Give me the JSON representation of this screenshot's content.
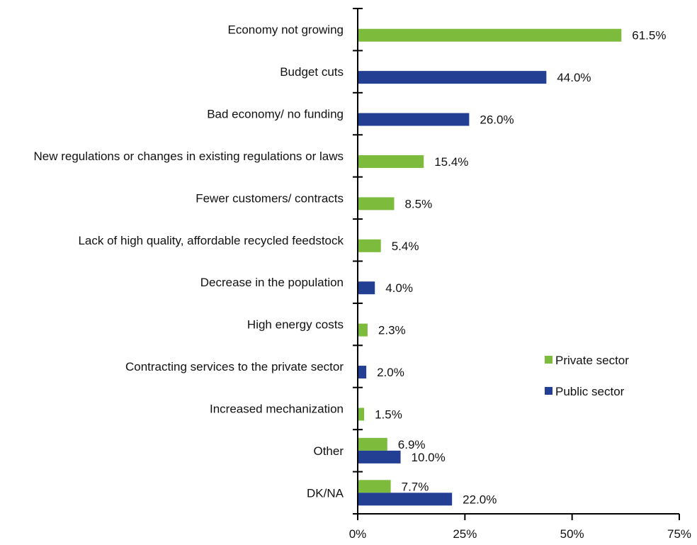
{
  "colors": {
    "private": "#7dbb3c",
    "public": "#233f93",
    "axis": "#000000"
  },
  "chart_data": {
    "type": "bar",
    "orientation": "horizontal",
    "categories": [
      "Economy not growing",
      "Budget cuts",
      "Bad economy/ no funding",
      "New regulations or changes in existing regulations or laws",
      "Fewer customers/ contracts",
      "Lack of high quality, affordable recycled feedstock",
      "Decrease in the population",
      "High energy costs",
      "Contracting services to the private sector",
      "Increased mechanization",
      "Other",
      "DK/NA"
    ],
    "series": [
      {
        "name": "Private sector",
        "values": [
          61.5,
          null,
          null,
          15.4,
          8.5,
          5.4,
          null,
          2.3,
          null,
          1.5,
          6.9,
          7.7
        ]
      },
      {
        "name": "Public sector",
        "values": [
          null,
          44.0,
          26.0,
          null,
          null,
          null,
          4.0,
          null,
          2.0,
          null,
          10.0,
          22.0
        ]
      }
    ],
    "xlim": [
      0,
      75
    ],
    "xticks": [
      0,
      25,
      50,
      75
    ],
    "tick_labels": [
      "0%",
      "25%",
      "50%",
      "75%"
    ],
    "value_format": "%",
    "legend": {
      "placement": "right",
      "entries": [
        "Private sector",
        "Public sector"
      ]
    },
    "grid": false
  }
}
